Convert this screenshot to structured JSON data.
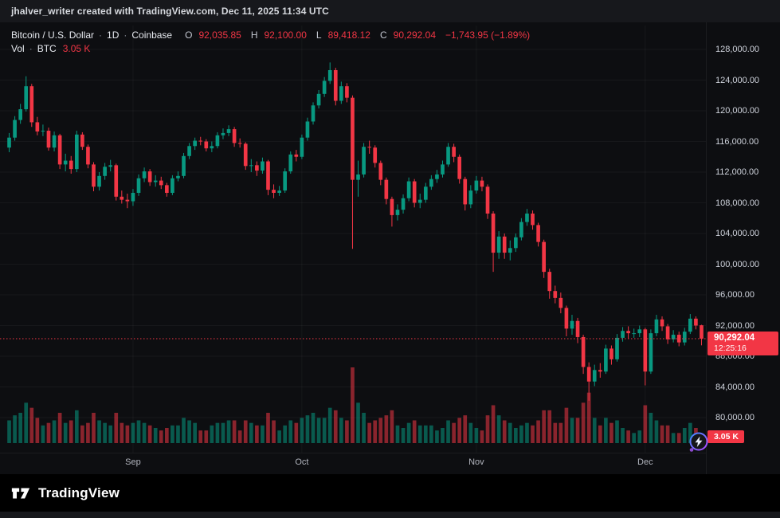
{
  "attribution": "jhalver_writer created with TradingView.com, Dec 11, 2025 11:34 UTC",
  "header": {
    "symbol": "Bitcoin / U.S. Dollar",
    "sep1": "·",
    "interval": "1D",
    "sep2": "·",
    "exchange": "Coinbase",
    "o_label": "O",
    "o_value": "92,035.85",
    "h_label": "H",
    "h_value": "92,100.00",
    "l_label": "L",
    "l_value": "89,418.12",
    "c_label": "C",
    "c_value": "90,292.04",
    "change": "−1,743.95 (−1.89%)",
    "vol_label": "Vol",
    "vol_sep": "·",
    "vol_unit": "BTC",
    "vol_value": "3.05 K"
  },
  "price_badge": {
    "price": "90,292.04",
    "countdown": "12:25:16"
  },
  "volume_badge": "3.05 K",
  "footer": {
    "brand": "TradingView"
  },
  "colors": {
    "up": "#089981",
    "down": "#f23645",
    "up_vol": "rgba(8,153,129,0.55)",
    "down_vol": "rgba(242,54,69,0.55)",
    "badge": "#f23645",
    "axis_text": "#cfd3dc",
    "grid": "rgba(255,255,255,0.045)"
  },
  "chart_data": {
    "type": "candlestick",
    "title": "Bitcoin / U.S. Dollar · 1D · Coinbase",
    "interval": "1D",
    "last_close": 90292.04,
    "last_volume_label": "3.05 K",
    "volume_unit": "K BTC",
    "price_axis_range": [
      80000,
      128000
    ],
    "price_ticks": [
      128000,
      124000,
      120000,
      116000,
      112000,
      108000,
      104000,
      100000,
      96000,
      92000,
      88000,
      84000,
      80000
    ],
    "price_tick_labels": [
      "128,000.00",
      "124,000.00",
      "120,000.00",
      "116,000.00",
      "112,000.00",
      "108,000.00",
      "104,000.00",
      "100,000.00",
      "96,000.00",
      "92,000.00",
      "88,000.00",
      "84,000.00",
      "80,000.00"
    ],
    "time_axis_labels": [
      "Sep",
      "Oct",
      "Nov",
      "Dec"
    ],
    "candles_format": [
      "date",
      "open",
      "high",
      "low",
      "close",
      "volume_kbtc"
    ],
    "candles": [
      [
        "2025-08-10",
        115200,
        117100,
        114600,
        116500,
        9
      ],
      [
        "2025-08-11",
        116500,
        119300,
        116100,
        118800,
        11
      ],
      [
        "2025-08-12",
        118800,
        120900,
        118300,
        120200,
        12
      ],
      [
        "2025-08-13",
        120200,
        124500,
        119900,
        123200,
        16
      ],
      [
        "2025-08-14",
        123200,
        123500,
        117900,
        118500,
        14
      ],
      [
        "2025-08-15",
        118500,
        119200,
        116800,
        117300,
        10
      ],
      [
        "2025-08-16",
        117300,
        118200,
        116700,
        117400,
        7
      ],
      [
        "2025-08-17",
        117400,
        117800,
        114800,
        115200,
        8
      ],
      [
        "2025-08-18",
        115200,
        117300,
        114700,
        116800,
        9
      ],
      [
        "2025-08-19",
        116800,
        117000,
        112400,
        113000,
        12
      ],
      [
        "2025-08-20",
        113000,
        114400,
        112100,
        113500,
        8
      ],
      [
        "2025-08-21",
        113500,
        114100,
        111800,
        112400,
        9
      ],
      [
        "2025-08-22",
        112400,
        117400,
        112000,
        116900,
        13
      ],
      [
        "2025-08-23",
        116900,
        117200,
        114900,
        115300,
        7
      ],
      [
        "2025-08-24",
        115300,
        115600,
        112500,
        113000,
        8
      ],
      [
        "2025-08-25",
        113000,
        113300,
        109500,
        110100,
        12
      ],
      [
        "2025-08-26",
        110100,
        112000,
        109600,
        111500,
        9
      ],
      [
        "2025-08-27",
        111500,
        113200,
        111000,
        112700,
        8
      ],
      [
        "2025-08-28",
        112700,
        113600,
        112100,
        112900,
        7
      ],
      [
        "2025-08-29",
        112900,
        113100,
        108300,
        108800,
        12
      ],
      [
        "2025-08-30",
        108800,
        109600,
        107900,
        108400,
        8
      ],
      [
        "2025-08-31",
        108400,
        109200,
        107300,
        108200,
        7
      ],
      [
        "2025-09-01",
        108200,
        109800,
        107600,
        109300,
        8
      ],
      [
        "2025-09-02",
        109300,
        111700,
        108900,
        111200,
        9
      ],
      [
        "2025-09-03",
        111200,
        112600,
        110700,
        112100,
        8
      ],
      [
        "2025-09-04",
        112100,
        112400,
        110200,
        110700,
        7
      ],
      [
        "2025-09-05",
        110700,
        111600,
        110100,
        110900,
        6
      ],
      [
        "2025-09-06",
        110900,
        111400,
        109800,
        110300,
        5
      ],
      [
        "2025-09-07",
        110300,
        110600,
        108800,
        109300,
        6
      ],
      [
        "2025-09-08",
        109300,
        111600,
        109000,
        111200,
        7
      ],
      [
        "2025-09-09",
        111200,
        112100,
        110800,
        111500,
        7
      ],
      [
        "2025-09-10",
        111500,
        114500,
        111200,
        114100,
        10
      ],
      [
        "2025-09-11",
        114100,
        115800,
        113700,
        115400,
        9
      ],
      [
        "2025-09-12",
        115400,
        116500,
        114900,
        116100,
        8
      ],
      [
        "2025-09-13",
        116100,
        116600,
        115500,
        116000,
        5
      ],
      [
        "2025-09-14",
        116000,
        116300,
        114700,
        115100,
        5
      ],
      [
        "2025-09-15",
        115100,
        116000,
        114600,
        115400,
        7
      ],
      [
        "2025-09-16",
        115400,
        117200,
        115100,
        116800,
        8
      ],
      [
        "2025-09-17",
        116800,
        117700,
        116300,
        117100,
        8
      ],
      [
        "2025-09-18",
        117100,
        118100,
        116700,
        117600,
        9
      ],
      [
        "2025-09-19",
        117600,
        117900,
        115300,
        115800,
        9
      ],
      [
        "2025-09-20",
        115800,
        116400,
        115200,
        115700,
        5
      ],
      [
        "2025-09-21",
        115700,
        115900,
        112300,
        112800,
        9
      ],
      [
        "2025-09-22",
        112800,
        113700,
        112000,
        112900,
        8
      ],
      [
        "2025-09-23",
        112900,
        113400,
        111500,
        112200,
        7
      ],
      [
        "2025-09-24",
        112200,
        113900,
        111800,
        113400,
        7
      ],
      [
        "2025-09-25",
        113400,
        113600,
        109000,
        109700,
        12
      ],
      [
        "2025-09-26",
        109700,
        110400,
        108600,
        109300,
        9
      ],
      [
        "2025-09-27",
        109300,
        110200,
        108900,
        109600,
        5
      ],
      [
        "2025-09-28",
        109600,
        112500,
        109300,
        112100,
        7
      ],
      [
        "2025-09-29",
        112100,
        114700,
        111800,
        114300,
        9
      ],
      [
        "2025-09-30",
        114300,
        114900,
        113400,
        114000,
        8
      ],
      [
        "2025-10-01",
        114000,
        116900,
        113700,
        116500,
        10
      ],
      [
        "2025-10-02",
        116500,
        119100,
        116100,
        118600,
        11
      ],
      [
        "2025-10-03",
        118600,
        121100,
        118200,
        120700,
        12
      ],
      [
        "2025-10-04",
        120700,
        122700,
        120300,
        122200,
        10
      ],
      [
        "2025-10-05",
        122200,
        124400,
        121800,
        123900,
        10
      ],
      [
        "2025-10-06",
        123900,
        126300,
        123500,
        125300,
        14
      ],
      [
        "2025-10-07",
        125300,
        125600,
        120700,
        121300,
        13
      ],
      [
        "2025-10-08",
        121300,
        123800,
        120900,
        123200,
        10
      ],
      [
        "2025-10-09",
        123200,
        123600,
        121100,
        121700,
        9
      ],
      [
        "2025-10-10",
        121700,
        122000,
        102000,
        111000,
        30
      ],
      [
        "2025-10-11",
        111000,
        113500,
        108800,
        111700,
        16
      ],
      [
        "2025-10-12",
        111700,
        115800,
        111300,
        115300,
        12
      ],
      [
        "2025-10-13",
        115300,
        116100,
        114400,
        115200,
        8
      ],
      [
        "2025-10-14",
        115200,
        115500,
        112600,
        113200,
        9
      ],
      [
        "2025-10-15",
        113200,
        113500,
        110300,
        111000,
        10
      ],
      [
        "2025-10-16",
        111000,
        111300,
        107800,
        108500,
        11
      ],
      [
        "2025-10-17",
        108500,
        108800,
        104900,
        106400,
        13
      ],
      [
        "2025-10-18",
        106400,
        107800,
        105700,
        107100,
        7
      ],
      [
        "2025-10-19",
        107100,
        109100,
        106600,
        108600,
        6
      ],
      [
        "2025-10-20",
        108600,
        111300,
        108200,
        110800,
        8
      ],
      [
        "2025-10-21",
        110800,
        111100,
        107400,
        108000,
        9
      ],
      [
        "2025-10-22",
        108000,
        109200,
        107300,
        108400,
        7
      ],
      [
        "2025-10-23",
        108400,
        110600,
        108000,
        110100,
        7
      ],
      [
        "2025-10-24",
        110100,
        111600,
        109700,
        111100,
        7
      ],
      [
        "2025-10-25",
        111100,
        112300,
        110600,
        111700,
        5
      ],
      [
        "2025-10-26",
        111700,
        113500,
        111300,
        113000,
        6
      ],
      [
        "2025-10-27",
        113000,
        115800,
        112700,
        115300,
        9
      ],
      [
        "2025-10-28",
        115300,
        115700,
        113300,
        114000,
        8
      ],
      [
        "2025-10-29",
        114000,
        114300,
        110500,
        111100,
        10
      ],
      [
        "2025-10-30",
        111100,
        111400,
        107000,
        107800,
        11
      ],
      [
        "2025-10-31",
        107800,
        110300,
        107300,
        109600,
        8
      ],
      [
        "2025-11-01",
        109600,
        111500,
        109200,
        110900,
        6
      ],
      [
        "2025-11-02",
        110900,
        111400,
        109500,
        110100,
        5
      ],
      [
        "2025-11-03",
        110100,
        110400,
        105900,
        106600,
        11
      ],
      [
        "2025-11-04",
        106600,
        106900,
        99000,
        101500,
        15
      ],
      [
        "2025-11-05",
        101500,
        104300,
        100700,
        103600,
        11
      ],
      [
        "2025-11-06",
        103600,
        104000,
        100700,
        101500,
        9
      ],
      [
        "2025-11-07",
        101500,
        103100,
        100500,
        102100,
        8
      ],
      [
        "2025-11-08",
        102100,
        104000,
        101600,
        103500,
        6
      ],
      [
        "2025-11-09",
        103500,
        106000,
        103100,
        105500,
        7
      ],
      [
        "2025-11-10",
        105500,
        107200,
        105000,
        106600,
        8
      ],
      [
        "2025-11-11",
        106600,
        107000,
        104500,
        105100,
        7
      ],
      [
        "2025-11-12",
        105100,
        105400,
        102300,
        102900,
        9
      ],
      [
        "2025-11-13",
        102900,
        103200,
        98200,
        99000,
        13
      ],
      [
        "2025-11-14",
        99000,
        99400,
        95500,
        96500,
        13
      ],
      [
        "2025-11-15",
        96500,
        97200,
        94900,
        95600,
        8
      ],
      [
        "2025-11-16",
        95600,
        96300,
        93600,
        94300,
        8
      ],
      [
        "2025-11-17",
        94300,
        94600,
        90600,
        91600,
        14
      ],
      [
        "2025-11-18",
        91600,
        93400,
        90800,
        92600,
        10
      ],
      [
        "2025-11-19",
        92600,
        93000,
        89700,
        90500,
        10
      ],
      [
        "2025-11-20",
        90500,
        90800,
        85700,
        86600,
        16
      ],
      [
        "2025-11-21",
        86600,
        87200,
        82200,
        84700,
        20
      ],
      [
        "2025-11-22",
        84700,
        86900,
        84100,
        86200,
        10
      ],
      [
        "2025-11-23",
        86200,
        87100,
        85200,
        86000,
        7
      ],
      [
        "2025-11-24",
        86000,
        89500,
        85700,
        89000,
        10
      ],
      [
        "2025-11-25",
        89000,
        89400,
        86900,
        87600,
        8
      ],
      [
        "2025-11-26",
        87600,
        90900,
        87300,
        90400,
        9
      ],
      [
        "2025-11-27",
        90400,
        91800,
        89900,
        91300,
        6
      ],
      [
        "2025-11-28",
        91300,
        91900,
        90300,
        91000,
        5
      ],
      [
        "2025-11-29",
        91000,
        91600,
        90400,
        91000,
        4
      ],
      [
        "2025-11-30",
        91000,
        92000,
        90500,
        91500,
        5
      ],
      [
        "2025-12-01",
        91500,
        91700,
        84200,
        86000,
        15
      ],
      [
        "2025-12-02",
        86000,
        91500,
        85700,
        91000,
        12
      ],
      [
        "2025-12-03",
        91000,
        93400,
        90600,
        92800,
        9
      ],
      [
        "2025-12-04",
        92800,
        93200,
        91300,
        91900,
        7
      ],
      [
        "2025-12-05",
        91900,
        92200,
        89600,
        90200,
        7
      ],
      [
        "2025-12-06",
        90200,
        91400,
        89800,
        90800,
        4
      ],
      [
        "2025-12-07",
        90800,
        91200,
        89300,
        89800,
        4
      ],
      [
        "2025-12-08",
        89800,
        91700,
        89400,
        91200,
        6
      ],
      [
        "2025-12-09",
        91200,
        93500,
        90900,
        92900,
        8
      ],
      [
        "2025-12-10",
        92900,
        93200,
        91500,
        92000,
        6
      ],
      [
        "2025-12-11",
        92035.85,
        92100,
        89418.12,
        90292.04,
        3.05
      ]
    ]
  }
}
